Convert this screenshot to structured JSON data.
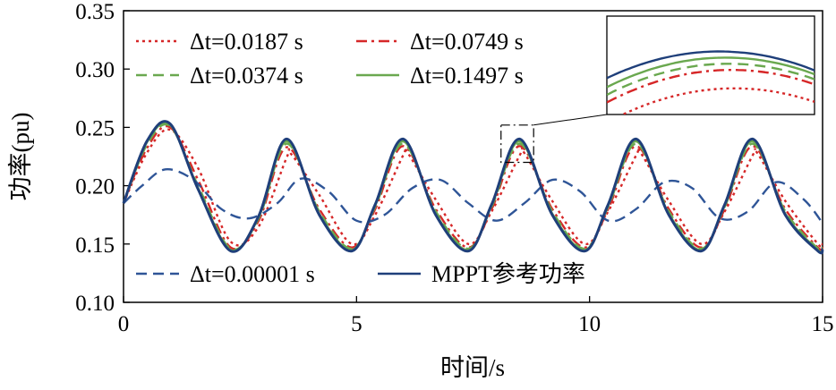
{
  "chart_data": {
    "type": "line",
    "xlabel": "时间/s",
    "ylabel": "功率(pu)",
    "xlim": [
      0,
      15
    ],
    "ylim": [
      0.1,
      0.35
    ],
    "xticks": [
      "0",
      "5",
      "10",
      "15"
    ],
    "yticks": [
      "0.10",
      "0.15",
      "0.20",
      "0.25",
      "0.30",
      "0.35"
    ],
    "grid": false,
    "series": [
      {
        "name": "Δt=0.0187 s",
        "color": "#d62728",
        "dash": "dotted",
        "x": [
          0,
          0.5,
          1.0,
          1.6,
          2.3,
          2.9,
          3.5,
          3.6,
          4.2,
          4.9,
          5.4,
          6.0,
          6.1,
          6.7,
          7.4,
          7.9,
          8.5,
          8.6,
          9.2,
          9.9,
          10.4,
          11.0,
          11.1,
          11.7,
          12.4,
          12.9,
          13.5,
          13.6,
          14.2,
          14.9,
          15
        ],
        "y": [
          0.185,
          0.228,
          0.248,
          0.215,
          0.152,
          0.165,
          0.224,
          0.227,
          0.192,
          0.15,
          0.175,
          0.226,
          0.228,
          0.188,
          0.15,
          0.178,
          0.226,
          0.228,
          0.187,
          0.15,
          0.178,
          0.226,
          0.228,
          0.187,
          0.15,
          0.178,
          0.226,
          0.228,
          0.187,
          0.15,
          0.15
        ]
      },
      {
        "name": "Δt=0.0749 s",
        "color": "#d62728",
        "dash": "dashdot",
        "x": [
          0,
          0.5,
          1.0,
          1.6,
          2.3,
          2.9,
          3.5,
          4.2,
          4.9,
          5.4,
          6.0,
          6.7,
          7.4,
          7.9,
          8.5,
          9.2,
          9.9,
          10.4,
          11.0,
          11.7,
          12.4,
          12.9,
          13.5,
          14.2,
          14.9,
          15
        ],
        "y": [
          0.185,
          0.232,
          0.25,
          0.205,
          0.147,
          0.17,
          0.233,
          0.18,
          0.147,
          0.18,
          0.234,
          0.18,
          0.147,
          0.18,
          0.234,
          0.18,
          0.147,
          0.18,
          0.234,
          0.18,
          0.147,
          0.18,
          0.234,
          0.18,
          0.147,
          0.148
        ]
      },
      {
        "name": "Δt=0.0374 s",
        "color": "#6aa84f",
        "dash": "dashed",
        "x": [
          0,
          0.5,
          1.0,
          1.6,
          2.3,
          2.9,
          3.5,
          4.2,
          4.9,
          5.4,
          6.0,
          6.7,
          7.4,
          7.9,
          8.5,
          9.2,
          9.9,
          10.4,
          11.0,
          11.7,
          12.4,
          12.9,
          13.5,
          14.2,
          14.9,
          15
        ],
        "y": [
          0.185,
          0.235,
          0.251,
          0.2,
          0.146,
          0.172,
          0.236,
          0.178,
          0.146,
          0.182,
          0.236,
          0.178,
          0.146,
          0.182,
          0.236,
          0.178,
          0.146,
          0.182,
          0.236,
          0.178,
          0.146,
          0.182,
          0.236,
          0.178,
          0.146,
          0.147
        ]
      },
      {
        "name": "Δt=0.1497 s",
        "color": "#6aa84f",
        "dash": "solid",
        "x": [
          0,
          0.5,
          1.0,
          1.6,
          2.3,
          2.9,
          3.5,
          4.2,
          4.9,
          5.4,
          6.0,
          6.7,
          7.4,
          7.9,
          8.5,
          9.2,
          9.9,
          10.4,
          11.0,
          11.7,
          12.4,
          12.9,
          13.5,
          14.2,
          14.9,
          15
        ],
        "y": [
          0.185,
          0.237,
          0.252,
          0.198,
          0.145,
          0.173,
          0.238,
          0.176,
          0.145,
          0.183,
          0.238,
          0.176,
          0.145,
          0.183,
          0.238,
          0.176,
          0.145,
          0.183,
          0.238,
          0.176,
          0.145,
          0.183,
          0.238,
          0.176,
          0.145,
          0.146
        ]
      },
      {
        "name": "Δt=0.00001 s",
        "color": "#2f5597",
        "dash": "dashed",
        "x": [
          0,
          0.4,
          0.9,
          1.5,
          2.1,
          2.7,
          3.3,
          3.8,
          4.4,
          5.0,
          5.6,
          6.2,
          6.8,
          7.4,
          8.0,
          8.6,
          9.2,
          9.8,
          10.4,
          11.0,
          11.6,
          12.2,
          12.8,
          13.4,
          14.0,
          14.6,
          15
        ],
        "y": [
          0.185,
          0.2,
          0.214,
          0.205,
          0.18,
          0.172,
          0.185,
          0.206,
          0.195,
          0.17,
          0.175,
          0.198,
          0.205,
          0.185,
          0.17,
          0.185,
          0.205,
          0.195,
          0.17,
          0.18,
          0.203,
          0.198,
          0.172,
          0.178,
          0.203,
          0.188,
          0.168
        ]
      },
      {
        "name": "MPPT参考功率",
        "color": "#1f3f7a",
        "dash": "solid",
        "x": [
          0,
          0.5,
          1.0,
          1.6,
          2.3,
          2.9,
          3.5,
          4.2,
          4.9,
          5.4,
          6.0,
          6.7,
          7.4,
          7.9,
          8.5,
          9.2,
          9.9,
          10.4,
          11.0,
          11.7,
          12.4,
          12.9,
          13.5,
          14.2,
          14.9,
          15
        ],
        "y": [
          0.185,
          0.238,
          0.253,
          0.197,
          0.144,
          0.174,
          0.24,
          0.175,
          0.144,
          0.184,
          0.24,
          0.175,
          0.144,
          0.184,
          0.24,
          0.175,
          0.144,
          0.184,
          0.24,
          0.175,
          0.144,
          0.184,
          0.24,
          0.175,
          0.144,
          0.146
        ]
      }
    ],
    "legend_upper": [
      "Δt=0.0187 s",
      "Δt=0.0749 s",
      "Δt=0.0374 s",
      "Δt=0.1497 s"
    ],
    "legend_lower": [
      "Δt=0.00001 s",
      "MPPT参考功率"
    ],
    "inset": {
      "zoom_x": [
        8.1,
        8.8
      ],
      "zoom_y": [
        0.22,
        0.252
      ]
    }
  }
}
